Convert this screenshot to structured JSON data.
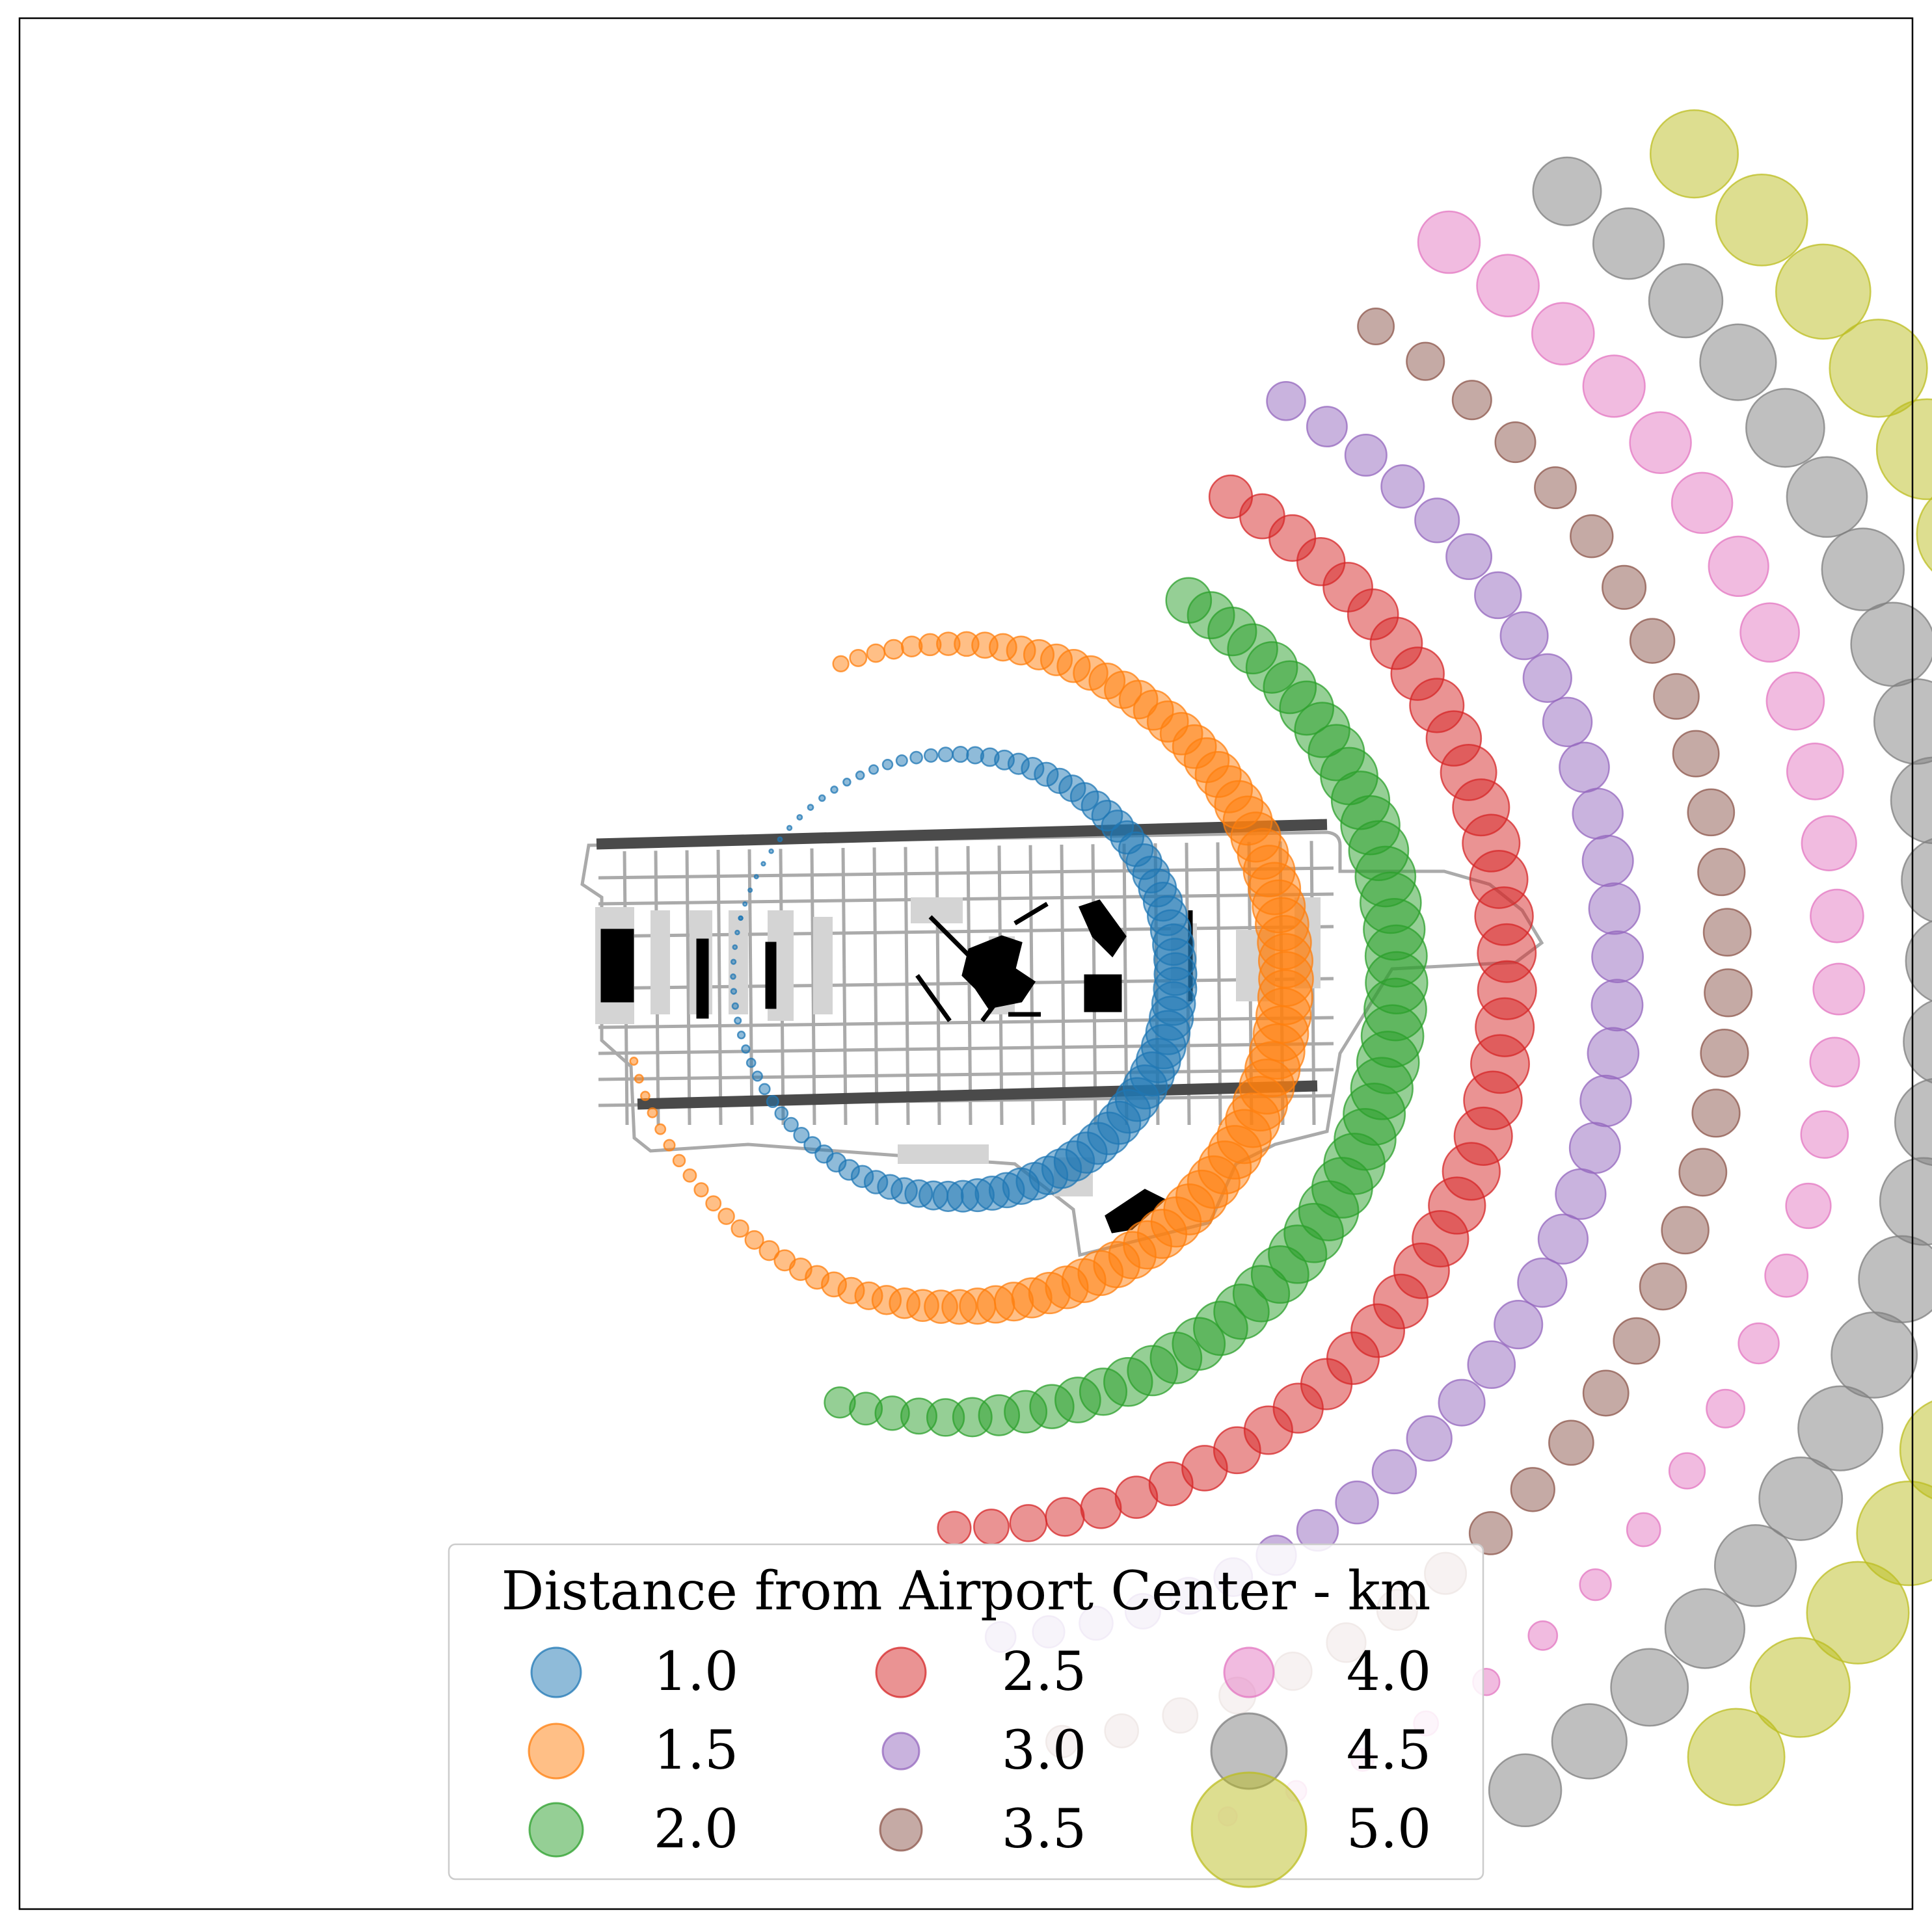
{
  "chart_data": {
    "type": "scatter",
    "description_text": "",
    "legend": {
      "title": "Distance from Airport Center - km",
      "placement": "bottom-center",
      "ncol": 3,
      "entries": [
        {
          "label": "1.0",
          "color": "#1f77b4"
        },
        {
          "label": "1.5",
          "color": "#ff7f0e"
        },
        {
          "label": "2.0",
          "color": "#2ca02c"
        },
        {
          "label": "2.5",
          "color": "#d62728"
        },
        {
          "label": "3.0",
          "color": "#9467bd"
        },
        {
          "label": "3.5",
          "color": "#8c564b"
        },
        {
          "label": "4.0",
          "color": "#e377c2"
        },
        {
          "label": "4.5",
          "color": "#7f7f7f"
        },
        {
          "label": "5.0",
          "color": "#bcbd22"
        }
      ]
    },
    "series": [
      {
        "distance_km": 1.0,
        "color": "#1f77b4",
        "arc_deg": [
          -165,
          195
        ],
        "peak_deg": 22,
        "min_size": 0.2,
        "max_size": 2.4,
        "dots": 95
      },
      {
        "distance_km": 1.5,
        "color": "#ff7f0e",
        "arc_deg": [
          -110,
          165
        ],
        "peak_deg": 12,
        "min_size": 0.3,
        "max_size": 3.0,
        "dots": 88
      },
      {
        "distance_km": 2.0,
        "color": "#2ca02c",
        "arc_deg": [
          -58,
          105
        ],
        "peak_deg": 8,
        "min_size": 0.5,
        "max_size": 3.4,
        "dots": 48
      },
      {
        "distance_km": 2.5,
        "color": "#d62728",
        "arc_deg": [
          -60,
          90
        ],
        "peak_deg": 4,
        "min_size": 0.4,
        "max_size": 3.2,
        "dots": 40
      },
      {
        "distance_km": 3.0,
        "color": "#9467bd",
        "arc_deg": [
          -60,
          86
        ],
        "peak_deg": 2,
        "min_size": 0.4,
        "max_size": 2.8,
        "dots": 36
      },
      {
        "distance_km": 3.5,
        "color": "#8c564b",
        "arc_deg": [
          -57,
          82
        ],
        "peak_deg": 6,
        "min_size": 0.5,
        "max_size": 2.6,
        "dots": 32
      },
      {
        "distance_km": 4.0,
        "color": "#e377c2",
        "arc_deg": [
          -56,
          72
        ],
        "peak_deg": -50,
        "min_size": 0.4,
        "max_size": 3.4,
        "dots": 28
      },
      {
        "distance_km": 4.5,
        "color": "#7f7f7f",
        "arc_deg": [
          -52,
          55
        ],
        "peak_deg": 5,
        "min_size": 0.5,
        "max_size": 4.8,
        "dots": 24
      },
      {
        "distance_km": 5.0,
        "color": "#bcbd22",
        "arc_deg": [
          -48,
          45
        ],
        "peak_deg": 5,
        "min_size": 0.5,
        "max_size": 6.0,
        "dots": 20
      }
    ],
    "basemap": {
      "runways": 2,
      "taxiway_color": "#aaaaaa",
      "runway_color": "#4a4a4a",
      "building_color": "#000000"
    },
    "grid": false,
    "axes_visible": false,
    "frame": true
  }
}
